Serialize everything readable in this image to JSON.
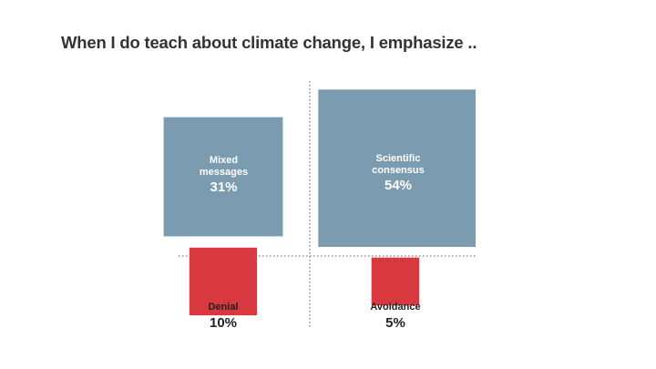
{
  "title": "When I do teach about climate change, I emphasize ..",
  "colors": {
    "major": "#7b9bb1",
    "minor": "#d8393e",
    "divider": "#555555"
  },
  "chart_data": {
    "type": "area-squares",
    "title": "When I do teach about climate change, I emphasize ..",
    "categories": [
      "Mixed messages",
      "Scientific consensus",
      "Denial",
      "Avoidance"
    ],
    "values": [
      31,
      54,
      10,
      5
    ],
    "labels": [
      "31%",
      "54%",
      "10%",
      "5%"
    ],
    "unit": "%",
    "grid": "quadrants",
    "colors": [
      "#7b9bb1",
      "#7b9bb1",
      "#d8393e",
      "#d8393e"
    ]
  },
  "quadrants": [
    {
      "name_lines": [
        "Mixed",
        "messages"
      ],
      "pct": "31%"
    },
    {
      "name_lines": [
        "Scientific",
        "consensus"
      ],
      "pct": "54%"
    },
    {
      "name_lines": [
        "Denial"
      ],
      "pct": "10%"
    },
    {
      "name_lines": [
        "Avoidance"
      ],
      "pct": "5%"
    }
  ]
}
